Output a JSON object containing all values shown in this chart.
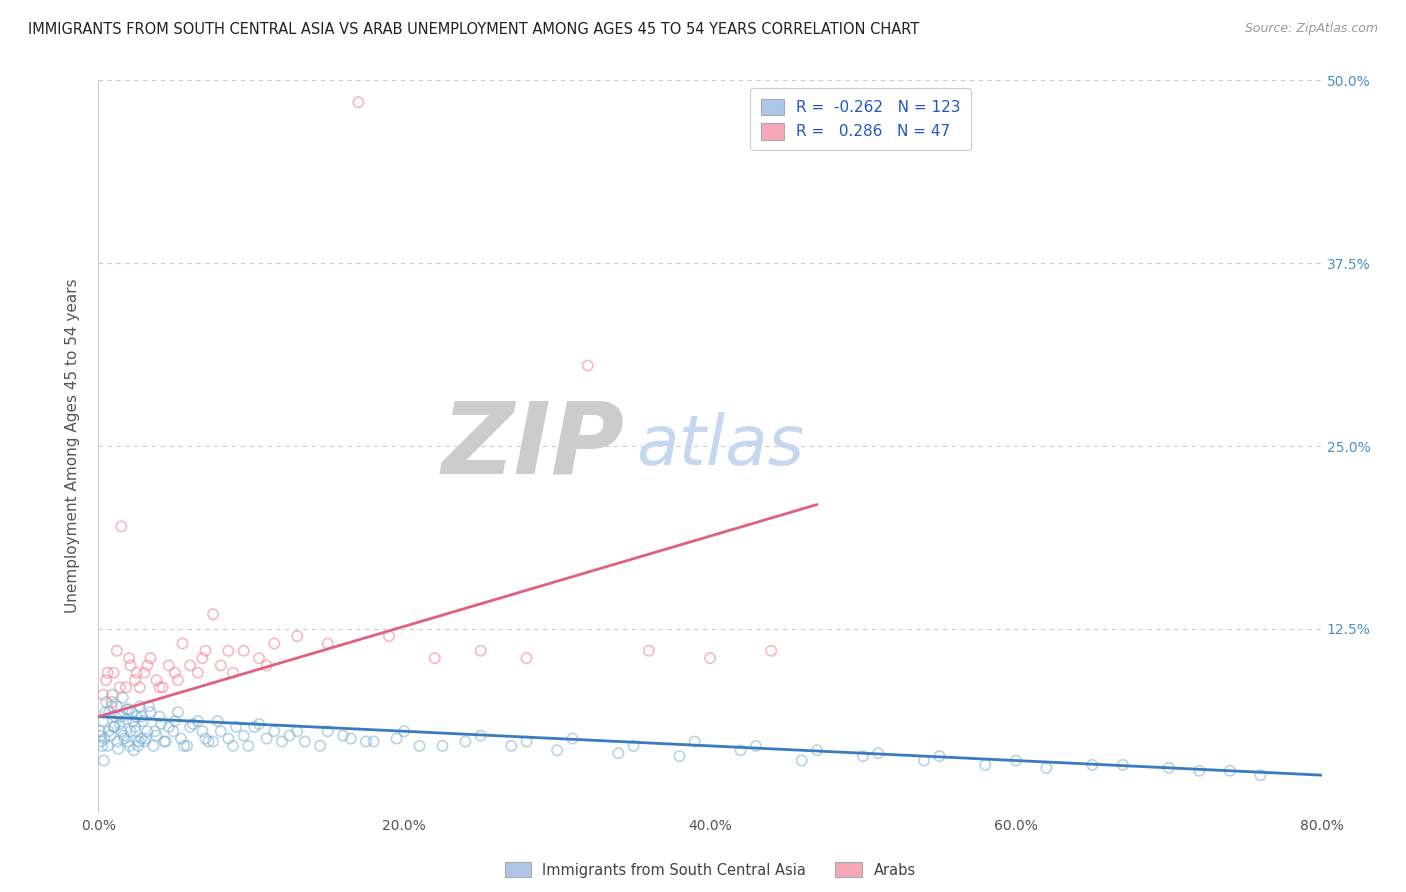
{
  "title": "IMMIGRANTS FROM SOUTH CENTRAL ASIA VS ARAB UNEMPLOYMENT AMONG AGES 45 TO 54 YEARS CORRELATION CHART",
  "source": "Source: ZipAtlas.com",
  "ylabel": "Unemployment Among Ages 45 to 54 years",
  "legend_entries": [
    {
      "label": "Immigrants from South Central Asia",
      "color": "#aec6e8",
      "R": -0.262,
      "N": 123
    },
    {
      "label": "Arabs",
      "color": "#f4a8b8",
      "R": 0.286,
      "N": 47
    }
  ],
  "xlim": [
    0.0,
    80.0
  ],
  "ylim": [
    0.0,
    50.0
  ],
  "yticks_right": [
    12.5,
    25.0,
    37.5,
    50.0
  ],
  "ytick_labels_right": [
    "12.5%",
    "25.0%",
    "37.5%",
    "50.0%"
  ],
  "xtick_labels": [
    "0.0%",
    "20.0%",
    "40.0%",
    "60.0%",
    "80.0%"
  ],
  "xticks": [
    0.0,
    20.0,
    40.0,
    60.0,
    80.0
  ],
  "background": "#ffffff",
  "watermark_ZIP": "ZIP",
  "watermark_atlas": "atlas",
  "watermark_color_ZIP": "#cccccc",
  "watermark_color_atlas": "#c5d8f0",
  "blue_scatter_color": "#7bafd4",
  "pink_scatter_color": "#f08090",
  "blue_line_color": "#3a7bbf",
  "pink_line_color": "#e06080",
  "blue_fill_color": "#aec6e8",
  "pink_fill_color": "#f4a8b8",
  "scatter_alpha": 0.55,
  "scatter_size": 55,
  "blue_points_x": [
    0.1,
    0.2,
    0.3,
    0.4,
    0.5,
    0.6,
    0.7,
    0.8,
    0.9,
    1.0,
    1.1,
    1.2,
    1.3,
    1.4,
    1.5,
    1.6,
    1.7,
    1.8,
    1.9,
    2.0,
    2.1,
    2.2,
    2.3,
    2.4,
    2.5,
    2.6,
    2.7,
    2.8,
    2.9,
    3.0,
    3.2,
    3.4,
    3.6,
    3.8,
    4.0,
    4.3,
    4.6,
    5.0,
    5.4,
    5.8,
    6.2,
    6.8,
    7.2,
    7.8,
    8.5,
    9.0,
    9.8,
    10.5,
    11.5,
    12.5,
    13.5,
    15.0,
    16.5,
    18.0,
    20.0,
    22.5,
    25.0,
    28.0,
    31.0,
    35.0,
    39.0,
    43.0,
    47.0,
    51.0,
    55.0,
    60.0,
    65.0,
    70.0,
    74.0,
    0.15,
    0.25,
    0.45,
    0.65,
    0.85,
    1.05,
    1.25,
    1.45,
    1.65,
    1.85,
    2.05,
    2.25,
    2.45,
    2.65,
    2.85,
    3.1,
    3.3,
    3.7,
    4.1,
    4.4,
    4.9,
    5.2,
    5.6,
    6.0,
    6.5,
    7.0,
    7.5,
    8.0,
    8.8,
    9.5,
    10.2,
    11.0,
    12.0,
    13.0,
    14.5,
    16.0,
    17.5,
    19.5,
    21.0,
    24.0,
    27.0,
    30.0,
    34.0,
    38.0,
    42.0,
    46.0,
    50.0,
    54.0,
    58.0,
    62.0,
    67.0,
    72.0,
    76.0,
    0.35
  ],
  "blue_points_y": [
    5.5,
    4.8,
    6.2,
    5.0,
    7.5,
    4.5,
    6.8,
    5.2,
    8.0,
    5.8,
    6.5,
    7.2,
    4.3,
    6.0,
    5.5,
    7.8,
    5.0,
    6.3,
    4.8,
    7.0,
    5.5,
    6.8,
    4.2,
    5.8,
    6.5,
    4.5,
    7.2,
    5.0,
    6.2,
    4.8,
    5.5,
    6.8,
    4.5,
    5.2,
    6.5,
    4.8,
    5.8,
    6.2,
    5.0,
    4.5,
    6.0,
    5.5,
    4.8,
    6.2,
    5.0,
    5.8,
    4.5,
    6.0,
    5.5,
    5.2,
    4.8,
    5.5,
    5.0,
    4.8,
    5.5,
    4.5,
    5.2,
    4.8,
    5.0,
    4.5,
    4.8,
    4.5,
    4.2,
    4.0,
    3.8,
    3.5,
    3.2,
    3.0,
    2.8,
    5.2,
    4.5,
    6.8,
    5.5,
    7.2,
    5.8,
    4.8,
    6.5,
    5.2,
    7.0,
    4.5,
    6.2,
    5.5,
    4.8,
    6.5,
    5.0,
    7.2,
    5.5,
    6.0,
    4.8,
    5.5,
    6.8,
    4.5,
    5.8,
    6.2,
    5.0,
    4.8,
    5.5,
    4.5,
    5.2,
    5.8,
    5.0,
    4.8,
    5.5,
    4.5,
    5.2,
    4.8,
    5.0,
    4.5,
    4.8,
    4.5,
    4.2,
    4.0,
    3.8,
    4.2,
    3.5,
    3.8,
    3.5,
    3.2,
    3.0,
    3.2,
    2.8,
    2.5,
    3.5
  ],
  "pink_points_x": [
    0.3,
    0.6,
    0.9,
    1.2,
    1.5,
    1.8,
    2.1,
    2.4,
    2.7,
    3.0,
    3.4,
    3.8,
    4.2,
    4.6,
    5.0,
    5.5,
    6.0,
    6.5,
    7.0,
    7.5,
    8.0,
    8.8,
    9.5,
    10.5,
    11.5,
    13.0,
    15.0,
    17.0,
    19.0,
    22.0,
    25.0,
    28.0,
    32.0,
    36.0,
    40.0,
    44.0,
    0.5,
    1.0,
    1.4,
    2.0,
    2.5,
    3.2,
    4.0,
    5.2,
    6.8,
    8.5,
    11.0
  ],
  "pink_points_y": [
    8.0,
    9.5,
    7.5,
    11.0,
    19.5,
    8.5,
    10.0,
    9.0,
    8.5,
    9.5,
    10.5,
    9.0,
    8.5,
    10.0,
    9.5,
    11.5,
    10.0,
    9.5,
    11.0,
    13.5,
    10.0,
    9.5,
    11.0,
    10.5,
    11.5,
    12.0,
    11.5,
    48.5,
    12.0,
    10.5,
    11.0,
    10.5,
    30.5,
    11.0,
    10.5,
    11.0,
    9.0,
    9.5,
    8.5,
    10.5,
    9.5,
    10.0,
    8.5,
    9.0,
    10.5,
    11.0,
    10.0
  ],
  "blue_trendline_x": [
    0.0,
    80.0
  ],
  "blue_trendline_y": [
    6.5,
    2.5
  ],
  "pink_trendline_x": [
    0.0,
    47.0
  ],
  "pink_trendline_y": [
    6.5,
    21.0
  ]
}
